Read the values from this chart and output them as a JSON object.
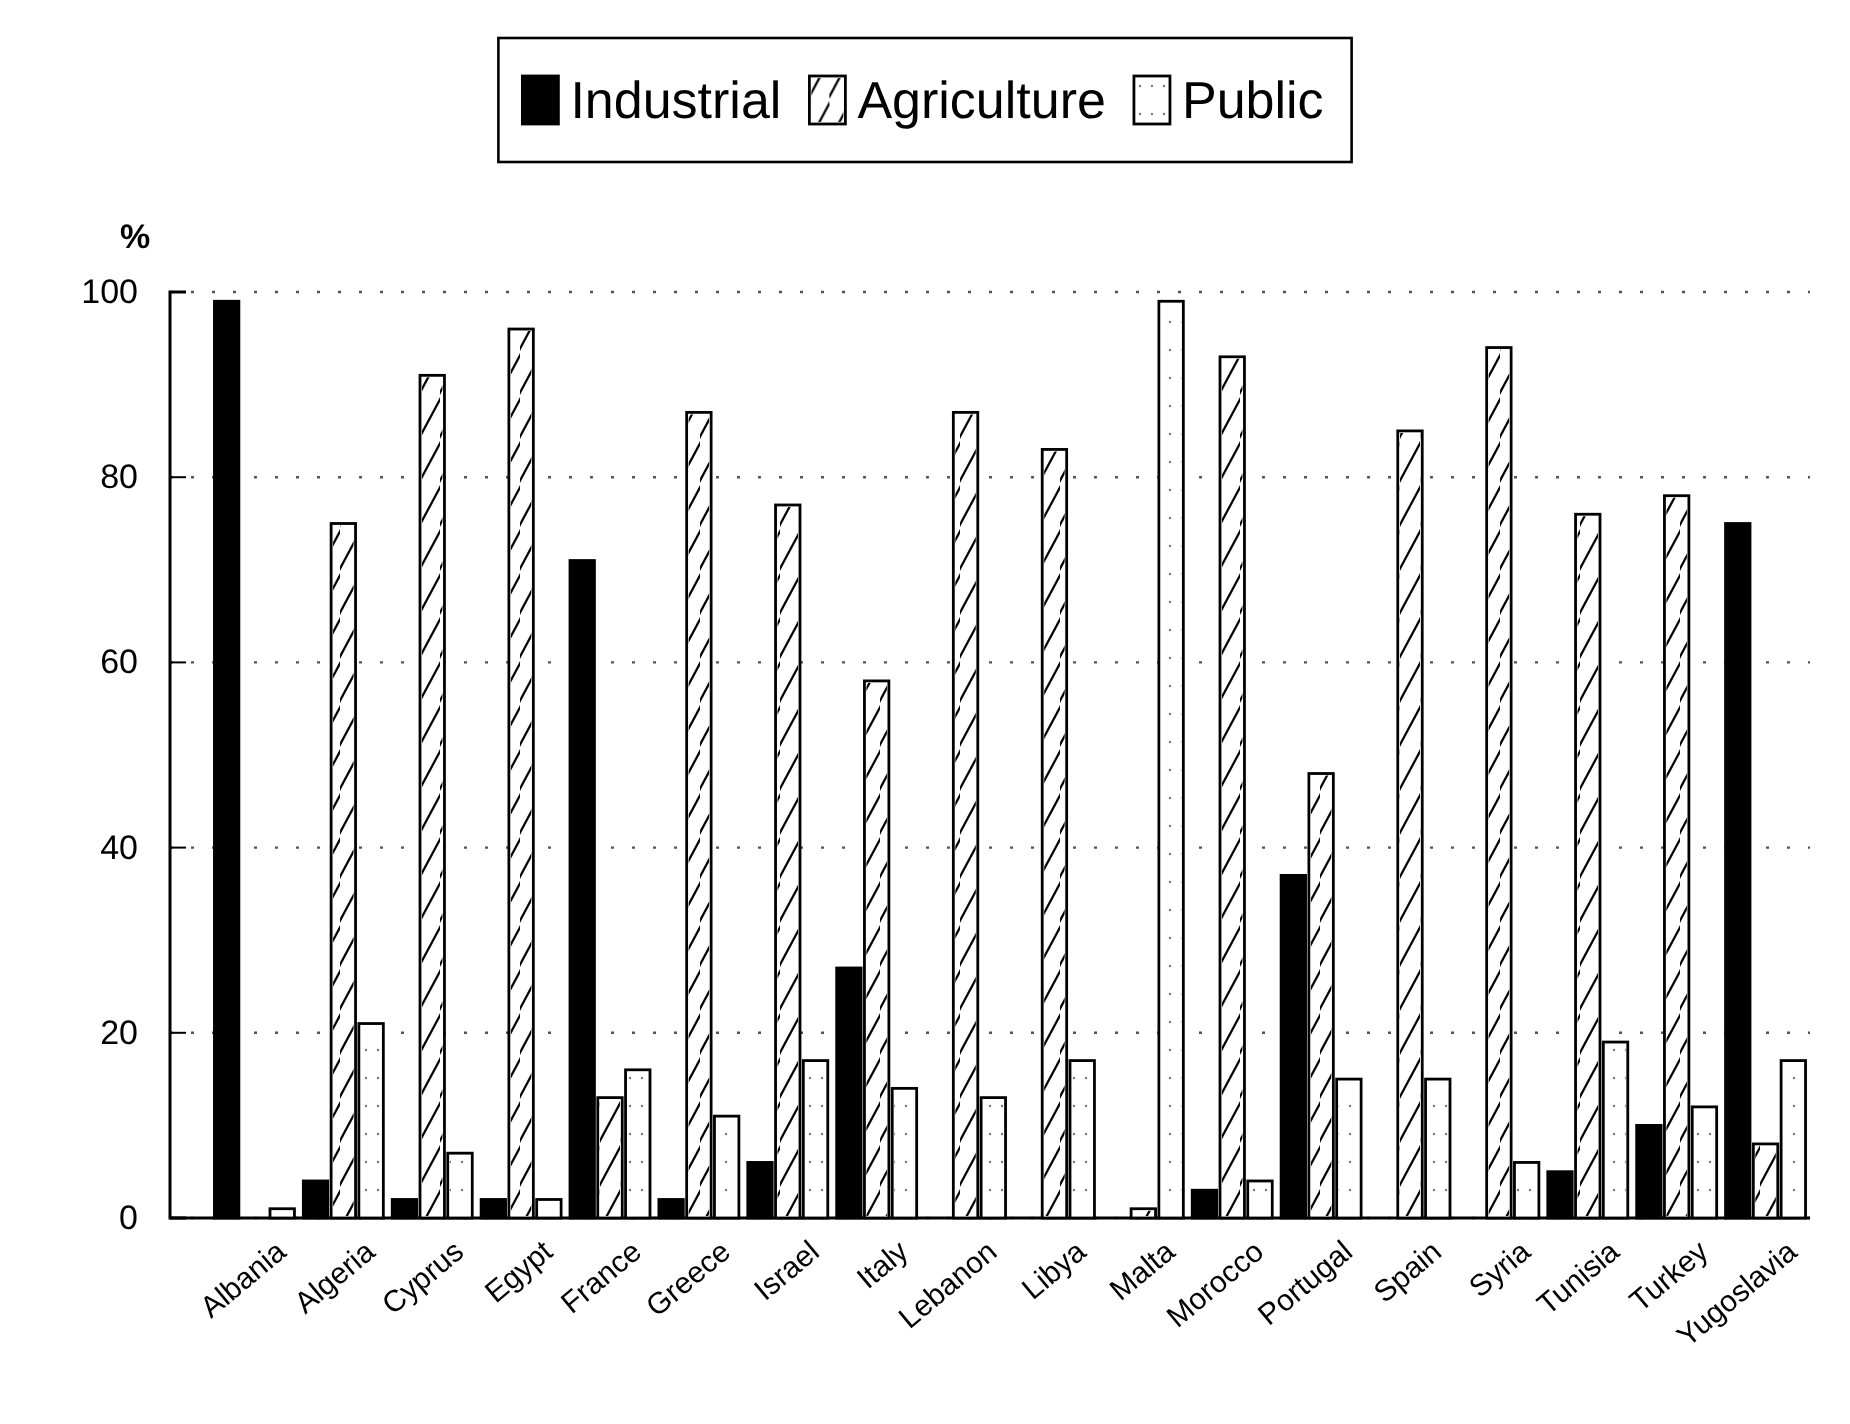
{
  "chart_data": {
    "type": "bar",
    "ylabel": "%",
    "categories": [
      "Albania",
      "Algeria",
      "Cyprus",
      "Egypt",
      "France",
      "Greece",
      "Israel",
      "Italy",
      "Lebanon",
      "Libya",
      "Malta",
      "Morocco",
      "Portugal",
      "Spain",
      "Syria",
      "Tunisia",
      "Turkey",
      "Yugoslavia"
    ],
    "series": [
      {
        "name": "Industrial",
        "color": "#000000",
        "values": [
          99,
          4,
          2,
          2,
          71,
          2,
          6,
          27,
          null,
          null,
          null,
          3,
          37,
          null,
          null,
          5,
          10,
          75
        ]
      },
      {
        "name": "Agriculture",
        "color": "#ffffff",
        "values": [
          null,
          75,
          91,
          96,
          13,
          87,
          77,
          58,
          87,
          83,
          1,
          93,
          48,
          85,
          94,
          76,
          78,
          8
        ]
      },
      {
        "name": "Public",
        "color": "#ffffff",
        "values": [
          1,
          21,
          7,
          2,
          16,
          11,
          17,
          14,
          13,
          17,
          99,
          4,
          15,
          15,
          6,
          19,
          12,
          17
        ]
      }
    ],
    "ylim": [
      0,
      100
    ],
    "yticks": [
      0,
      20,
      40,
      60,
      80,
      100
    ],
    "grid": "y",
    "legend": "top"
  }
}
